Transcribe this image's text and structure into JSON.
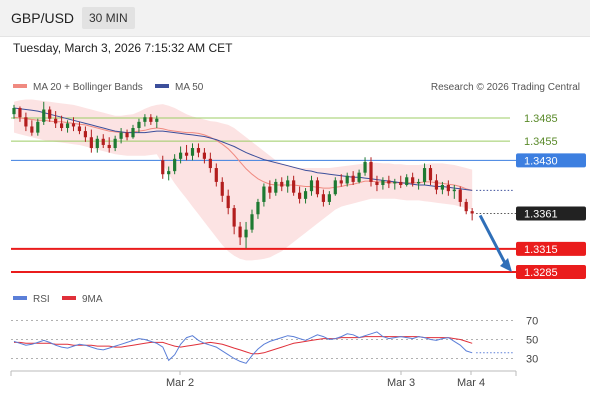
{
  "header": {
    "pair": "GBP/USD",
    "timeframe": "30 MIN"
  },
  "timestamp": "Tuesday, March 3, 2026 7:15:32 AM CET",
  "legend": {
    "ma20": "MA 20 + Bollinger Bands",
    "ma50": "MA 50",
    "credit": "Research © 2026 Trading Central"
  },
  "rsi_legend": {
    "rsi": "RSI",
    "ma9": "9MA"
  },
  "colors": {
    "ma20": "#f08a80",
    "ma50": "#3c4f9b",
    "up": "#1e7a32",
    "down": "#b31e1e",
    "green_level": "#9ccc65",
    "pivot": "#3d7fe0",
    "support": "#ea1c1c",
    "rsi": "#5b7fd8",
    "rsi_ma": "#e0303a",
    "band": "#fbd9d9"
  },
  "chart_data": [
    {
      "type": "candlestick",
      "x_ticks": [
        "Mar 2",
        "Mar 3",
        "Mar 4"
      ],
      "levels": [
        {
          "value": 1.3485,
          "label": "1.3485",
          "role": "resistance"
        },
        {
          "value": 1.3455,
          "label": "1.3455",
          "role": "resistance"
        },
        {
          "value": 1.343,
          "label": "1.3430",
          "role": "pivot"
        },
        {
          "value": 1.3361,
          "label": "1.3361",
          "role": "last"
        },
        {
          "value": 1.3315,
          "label": "1.3315",
          "role": "support"
        },
        {
          "value": 1.3285,
          "label": "1.3285",
          "role": "support"
        }
      ],
      "candles": [
        {
          "o": 1.349,
          "h": 1.3502,
          "l": 1.3484,
          "c": 1.3498
        },
        {
          "o": 1.3498,
          "h": 1.35,
          "l": 1.348,
          "c": 1.3486
        },
        {
          "o": 1.3486,
          "h": 1.3492,
          "l": 1.3468,
          "c": 1.3474
        },
        {
          "o": 1.3474,
          "h": 1.3482,
          "l": 1.3462,
          "c": 1.3466
        },
        {
          "o": 1.3466,
          "h": 1.3484,
          "l": 1.3462,
          "c": 1.348
        },
        {
          "o": 1.348,
          "h": 1.3506,
          "l": 1.3476,
          "c": 1.3496
        },
        {
          "o": 1.3496,
          "h": 1.35,
          "l": 1.348,
          "c": 1.3484
        },
        {
          "o": 1.3484,
          "h": 1.3494,
          "l": 1.3472,
          "c": 1.3478
        },
        {
          "o": 1.3478,
          "h": 1.3488,
          "l": 1.3468,
          "c": 1.3472
        },
        {
          "o": 1.3472,
          "h": 1.3482,
          "l": 1.3466,
          "c": 1.3478
        },
        {
          "o": 1.3478,
          "h": 1.3486,
          "l": 1.3468,
          "c": 1.3474
        },
        {
          "o": 1.3474,
          "h": 1.348,
          "l": 1.3464,
          "c": 1.3468
        },
        {
          "o": 1.3468,
          "h": 1.3474,
          "l": 1.3454,
          "c": 1.346
        },
        {
          "o": 1.346,
          "h": 1.347,
          "l": 1.344,
          "c": 1.3446
        },
        {
          "o": 1.3446,
          "h": 1.3462,
          "l": 1.344,
          "c": 1.3458
        },
        {
          "o": 1.3458,
          "h": 1.3464,
          "l": 1.3446,
          "c": 1.345
        },
        {
          "o": 1.345,
          "h": 1.346,
          "l": 1.344,
          "c": 1.3446
        },
        {
          "o": 1.3446,
          "h": 1.3462,
          "l": 1.3442,
          "c": 1.3458
        },
        {
          "o": 1.3458,
          "h": 1.3472,
          "l": 1.3452,
          "c": 1.3466
        },
        {
          "o": 1.3466,
          "h": 1.347,
          "l": 1.3456,
          "c": 1.346
        },
        {
          "o": 1.346,
          "h": 1.3476,
          "l": 1.3458,
          "c": 1.3472
        },
        {
          "o": 1.3472,
          "h": 1.3484,
          "l": 1.3466,
          "c": 1.348
        },
        {
          "o": 1.348,
          "h": 1.349,
          "l": 1.3474,
          "c": 1.3486
        },
        {
          "o": 1.3486,
          "h": 1.349,
          "l": 1.3476,
          "c": 1.348
        },
        {
          "o": 1.348,
          "h": 1.3488,
          "l": 1.3472,
          "c": 1.3484
        },
        {
          "o": 1.343,
          "h": 1.3436,
          "l": 1.3406,
          "c": 1.3412
        },
        {
          "o": 1.3412,
          "h": 1.3422,
          "l": 1.3404,
          "c": 1.3416
        },
        {
          "o": 1.3416,
          "h": 1.3438,
          "l": 1.3412,
          "c": 1.3432
        },
        {
          "o": 1.3432,
          "h": 1.3448,
          "l": 1.3426,
          "c": 1.344
        },
        {
          "o": 1.344,
          "h": 1.345,
          "l": 1.343,
          "c": 1.3436
        },
        {
          "o": 1.3436,
          "h": 1.3452,
          "l": 1.343,
          "c": 1.3446
        },
        {
          "o": 1.3446,
          "h": 1.3452,
          "l": 1.3434,
          "c": 1.344
        },
        {
          "o": 1.344,
          "h": 1.3446,
          "l": 1.3426,
          "c": 1.3432
        },
        {
          "o": 1.3432,
          "h": 1.344,
          "l": 1.3414,
          "c": 1.342
        },
        {
          "o": 1.342,
          "h": 1.3426,
          "l": 1.3396,
          "c": 1.3402
        },
        {
          "o": 1.3402,
          "h": 1.3408,
          "l": 1.3376,
          "c": 1.3384
        },
        {
          "o": 1.3384,
          "h": 1.3392,
          "l": 1.336,
          "c": 1.3368
        },
        {
          "o": 1.3368,
          "h": 1.3372,
          "l": 1.3334,
          "c": 1.3344
        },
        {
          "o": 1.3344,
          "h": 1.335,
          "l": 1.332,
          "c": 1.333
        },
        {
          "o": 1.333,
          "h": 1.335,
          "l": 1.3316,
          "c": 1.334
        },
        {
          "o": 1.334,
          "h": 1.3366,
          "l": 1.3336,
          "c": 1.336
        },
        {
          "o": 1.336,
          "h": 1.338,
          "l": 1.3354,
          "c": 1.3376
        },
        {
          "o": 1.3376,
          "h": 1.34,
          "l": 1.337,
          "c": 1.3396
        },
        {
          "o": 1.3396,
          "h": 1.3404,
          "l": 1.338,
          "c": 1.3388
        },
        {
          "o": 1.3388,
          "h": 1.3406,
          "l": 1.3384,
          "c": 1.3402
        },
        {
          "o": 1.3402,
          "h": 1.3408,
          "l": 1.339,
          "c": 1.3396
        },
        {
          "o": 1.3396,
          "h": 1.341,
          "l": 1.3388,
          "c": 1.3404
        },
        {
          "o": 1.3404,
          "h": 1.341,
          "l": 1.3384,
          "c": 1.3388
        },
        {
          "o": 1.3388,
          "h": 1.3396,
          "l": 1.3374,
          "c": 1.338
        },
        {
          "o": 1.338,
          "h": 1.3394,
          "l": 1.3374,
          "c": 1.339
        },
        {
          "o": 1.339,
          "h": 1.341,
          "l": 1.3384,
          "c": 1.3404
        },
        {
          "o": 1.3404,
          "h": 1.3408,
          "l": 1.3382,
          "c": 1.3386
        },
        {
          "o": 1.3386,
          "h": 1.3392,
          "l": 1.337,
          "c": 1.3376
        },
        {
          "o": 1.3376,
          "h": 1.339,
          "l": 1.3372,
          "c": 1.3386
        },
        {
          "o": 1.3386,
          "h": 1.3408,
          "l": 1.3384,
          "c": 1.3404
        },
        {
          "o": 1.3404,
          "h": 1.3412,
          "l": 1.3396,
          "c": 1.34
        },
        {
          "o": 1.34,
          "h": 1.3414,
          "l": 1.3396,
          "c": 1.341
        },
        {
          "o": 1.341,
          "h": 1.3416,
          "l": 1.3398,
          "c": 1.3402
        },
        {
          "o": 1.3402,
          "h": 1.3418,
          "l": 1.34,
          "c": 1.3414
        },
        {
          "o": 1.3414,
          "h": 1.3434,
          "l": 1.341,
          "c": 1.3428
        },
        {
          "o": 1.3428,
          "h": 1.3434,
          "l": 1.3396,
          "c": 1.3402
        },
        {
          "o": 1.3402,
          "h": 1.341,
          "l": 1.339,
          "c": 1.3398
        },
        {
          "o": 1.3398,
          "h": 1.3408,
          "l": 1.3392,
          "c": 1.3404
        },
        {
          "o": 1.3404,
          "h": 1.341,
          "l": 1.3394,
          "c": 1.34
        },
        {
          "o": 1.34,
          "h": 1.3406,
          "l": 1.3392,
          "c": 1.3402
        },
        {
          "o": 1.3402,
          "h": 1.341,
          "l": 1.3394,
          "c": 1.3398
        },
        {
          "o": 1.3398,
          "h": 1.3412,
          "l": 1.3396,
          "c": 1.3408
        },
        {
          "o": 1.3408,
          "h": 1.3414,
          "l": 1.3396,
          "c": 1.34
        },
        {
          "o": 1.34,
          "h": 1.3406,
          "l": 1.3392,
          "c": 1.3402
        },
        {
          "o": 1.3402,
          "h": 1.3426,
          "l": 1.3398,
          "c": 1.342
        },
        {
          "o": 1.342,
          "h": 1.3424,
          "l": 1.3398,
          "c": 1.3404
        },
        {
          "o": 1.3404,
          "h": 1.3412,
          "l": 1.3386,
          "c": 1.3392
        },
        {
          "o": 1.3392,
          "h": 1.3402,
          "l": 1.3386,
          "c": 1.3398
        },
        {
          "o": 1.3398,
          "h": 1.3404,
          "l": 1.3384,
          "c": 1.339
        },
        {
          "o": 1.339,
          "h": 1.3398,
          "l": 1.338,
          "c": 1.3392
        },
        {
          "o": 1.3392,
          "h": 1.3396,
          "l": 1.337,
          "c": 1.3376
        },
        {
          "o": 1.3376,
          "h": 1.338,
          "l": 1.336,
          "c": 1.3364
        },
        {
          "o": 1.3364,
          "h": 1.3368,
          "l": 1.3352,
          "c": 1.3361
        }
      ],
      "ma20": [
        1.3486,
        1.3485,
        1.3484,
        1.3483,
        1.3482,
        1.3482,
        1.3481,
        1.348,
        1.348,
        1.3479,
        1.3478,
        1.3477,
        1.3476,
        1.3474,
        1.3472,
        1.347,
        1.3468,
        1.3467,
        1.3466,
        1.3466,
        1.3467,
        1.3468,
        1.3469,
        1.3471,
        1.3472,
        1.3471,
        1.3469,
        1.3468,
        1.3467,
        1.3466,
        1.3466,
        1.3465,
        1.3463,
        1.346,
        1.3456,
        1.3451,
        1.3445,
        1.3437,
        1.3428,
        1.3419,
        1.3412,
        1.3406,
        1.3402,
        1.3399,
        1.3398,
        1.3398,
        1.3398,
        1.3398,
        1.3397,
        1.3396,
        1.3396,
        1.3395,
        1.3394,
        1.3394,
        1.3395,
        1.3396,
        1.3398,
        1.3399,
        1.3401,
        1.3403,
        1.3403,
        1.3402,
        1.3402,
        1.3401,
        1.3401,
        1.3401,
        1.3401,
        1.3401,
        1.3401,
        1.3402,
        1.3402,
        1.3401,
        1.34,
        1.3399,
        1.3398,
        1.3396,
        1.3393,
        1.3391
      ],
      "ma50": [
        1.3498,
        1.3497,
        1.3496,
        1.3495,
        1.3494,
        1.3492,
        1.349,
        1.3488,
        1.3486,
        1.3484,
        1.3482,
        1.348,
        1.3478,
        1.3476,
        1.3474,
        1.3472,
        1.347,
        1.3468,
        1.3467,
        1.3466,
        1.3466,
        1.3466,
        1.3466,
        1.3467,
        1.3468,
        1.3468,
        1.3467,
        1.3466,
        1.3465,
        1.3464,
        1.3463,
        1.3462,
        1.3461,
        1.3459,
        1.3457,
        1.3454,
        1.3451,
        1.3448,
        1.3444,
        1.344,
        1.3437,
        1.3434,
        1.3431,
        1.3429,
        1.3427,
        1.3425,
        1.3423,
        1.3421,
        1.3419,
        1.3417,
        1.3416,
        1.3414,
        1.3413,
        1.3412,
        1.3411,
        1.341,
        1.3409,
        1.3408,
        1.3408,
        1.3407,
        1.3406,
        1.3405,
        1.3404,
        1.3403,
        1.3402,
        1.3401,
        1.34,
        1.3399,
        1.3398,
        1.3398,
        1.3397,
        1.3396,
        1.3396,
        1.3395,
        1.3394,
        1.3393,
        1.3392,
        1.3391
      ],
      "bollinger_upper": [
        1.3506,
        1.3508,
        1.3509,
        1.3509,
        1.3508,
        1.3507,
        1.3506,
        1.3505,
        1.3504,
        1.3503,
        1.3502,
        1.35,
        1.3498,
        1.3496,
        1.3494,
        1.3492,
        1.349,
        1.3488,
        1.3488,
        1.3489,
        1.349,
        1.3493,
        1.3497,
        1.35,
        1.3502,
        1.3503,
        1.3501,
        1.3498,
        1.3494,
        1.349,
        1.3487,
        1.3485,
        1.3483,
        1.3481,
        1.348,
        1.3478,
        1.3476,
        1.3472,
        1.3466,
        1.346,
        1.3454,
        1.3448,
        1.3442,
        1.3436,
        1.343,
        1.3426,
        1.3424,
        1.3422,
        1.342,
        1.342,
        1.342,
        1.342,
        1.342,
        1.342,
        1.3421,
        1.3422,
        1.3423,
        1.3424,
        1.3425,
        1.3426,
        1.3427,
        1.3427,
        1.3426,
        1.3426,
        1.3425,
        1.3425,
        1.3424,
        1.3424,
        1.3424,
        1.3425,
        1.3426,
        1.3426,
        1.3426,
        1.3425,
        1.3424,
        1.3422,
        1.342,
        1.3418
      ],
      "bollinger_lower": [
        1.3466,
        1.3464,
        1.3462,
        1.346,
        1.3458,
        1.3456,
        1.3455,
        1.3454,
        1.3453,
        1.3452,
        1.3451,
        1.345,
        1.3448,
        1.3446,
        1.3444,
        1.3442,
        1.344,
        1.3438,
        1.3437,
        1.3436,
        1.3436,
        1.3436,
        1.3436,
        1.3437,
        1.3438,
        1.3425,
        1.3412,
        1.34,
        1.339,
        1.338,
        1.337,
        1.336,
        1.335,
        1.334,
        1.333,
        1.332,
        1.3312,
        1.3306,
        1.3302,
        1.33,
        1.33,
        1.3301,
        1.3302,
        1.3304,
        1.3308,
        1.3312,
        1.3318,
        1.3324,
        1.333,
        1.3336,
        1.3342,
        1.3348,
        1.3354,
        1.336,
        1.3366,
        1.337,
        1.3372,
        1.3374,
        1.3376,
        1.3378,
        1.338,
        1.338,
        1.338,
        1.338,
        1.338,
        1.3379,
        1.3378,
        1.3378,
        1.3378,
        1.3377,
        1.3376,
        1.3375,
        1.3374,
        1.3373,
        1.3372,
        1.337,
        1.3368,
        1.3366
      ],
      "projection": {
        "from": 1.3361,
        "to": 1.3285
      }
    },
    {
      "type": "line",
      "name": "RSI",
      "y_ticks": [
        70,
        50,
        30
      ],
      "ylim": [
        20,
        80
      ],
      "rsi": [
        48,
        46,
        44,
        45,
        47,
        49,
        47,
        44,
        42,
        41,
        43,
        45,
        44,
        42,
        40,
        39,
        41,
        43,
        45,
        47,
        49,
        51,
        50,
        48,
        46,
        42,
        28,
        34,
        45,
        52,
        54,
        49,
        46,
        44,
        42,
        38,
        34,
        30,
        27,
        25,
        33,
        40,
        45,
        48,
        50,
        52,
        54,
        53,
        51,
        49,
        52,
        55,
        53,
        50,
        51,
        53,
        56,
        55,
        52,
        54,
        56,
        58,
        53,
        51,
        52,
        53,
        52,
        51,
        53,
        52,
        50,
        49,
        51,
        52,
        48,
        44,
        38,
        36
      ],
      "rsi_ma": [
        47,
        47,
        46,
        46,
        46,
        46,
        46,
        45,
        45,
        45,
        44,
        44,
        44,
        44,
        43,
        43,
        43,
        42,
        42,
        43,
        44,
        45,
        46,
        47,
        47,
        47,
        45,
        43,
        42,
        43,
        44,
        45,
        46,
        47,
        46,
        45,
        43,
        41,
        39,
        37,
        35,
        35,
        36,
        38,
        40,
        42,
        44,
        46,
        47,
        48,
        49,
        50,
        51,
        51,
        51,
        52,
        52,
        52,
        52,
        53,
        53,
        53,
        53,
        53,
        53,
        53,
        53,
        53,
        53,
        52,
        52,
        52,
        52,
        52,
        51,
        50,
        48,
        46
      ]
    }
  ]
}
